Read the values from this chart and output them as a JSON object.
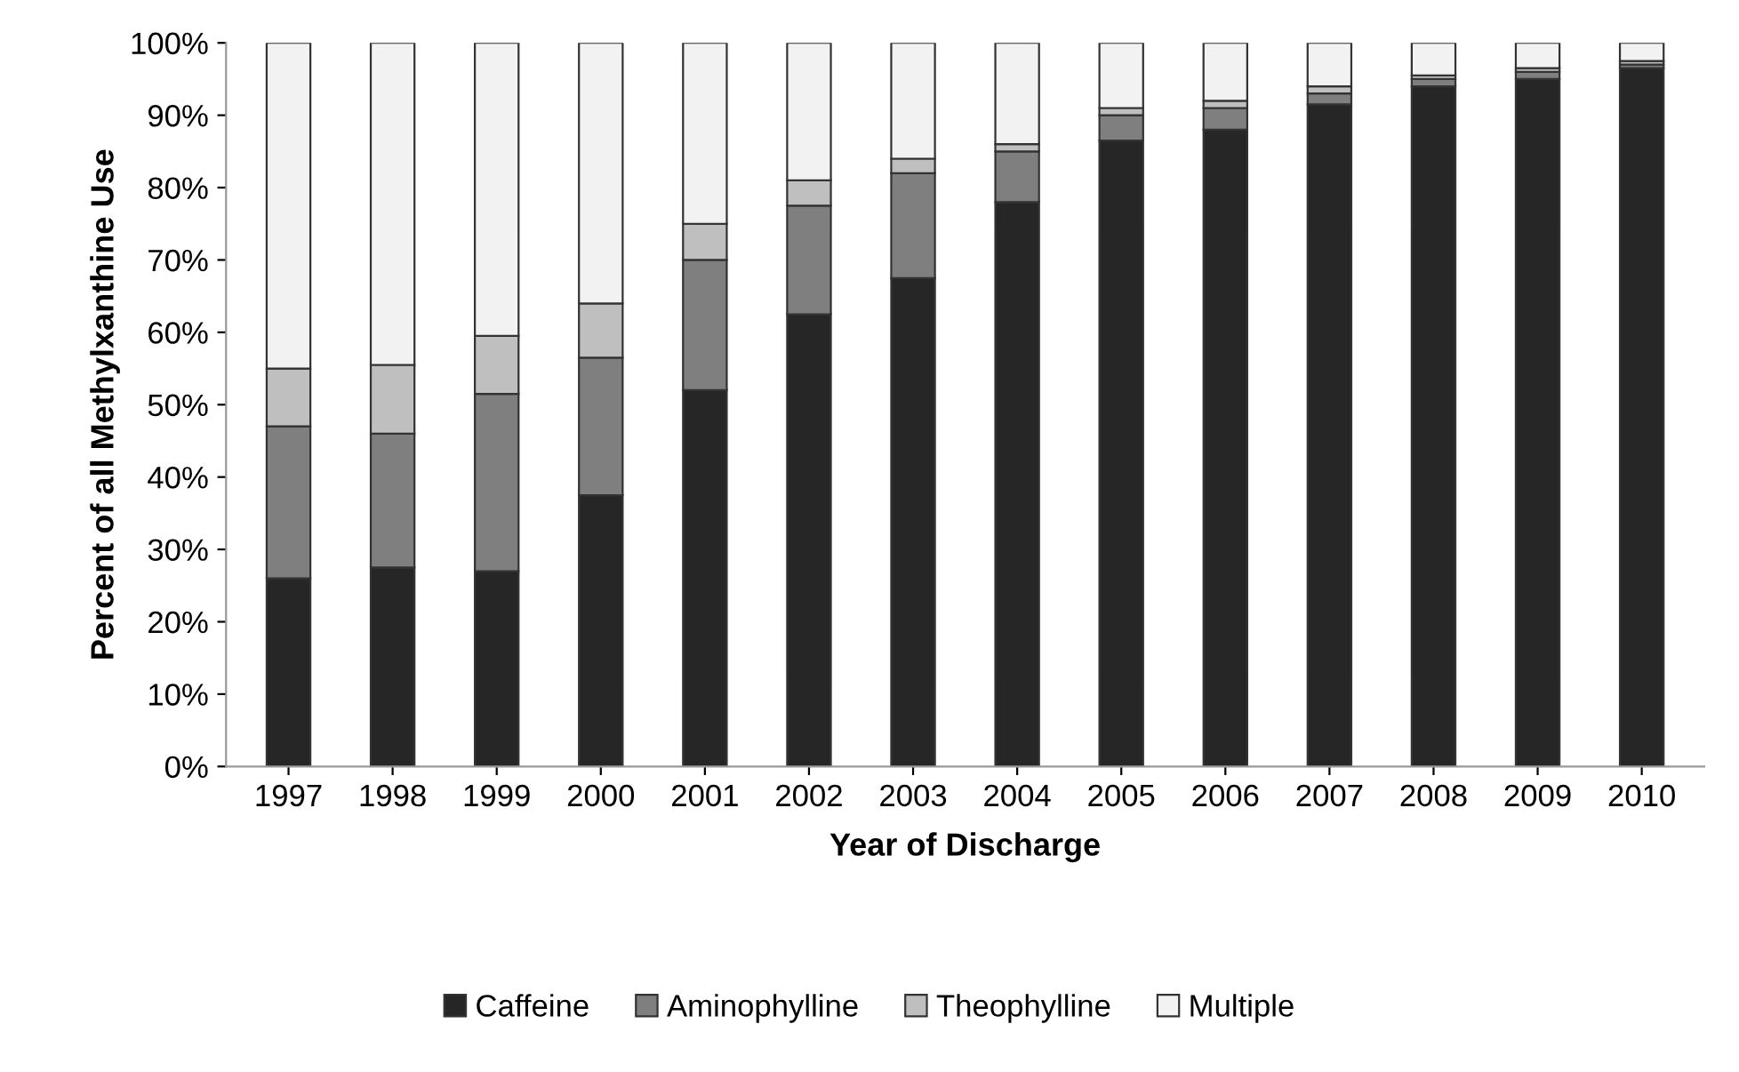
{
  "chart_data": {
    "type": "bar",
    "stacked": true,
    "xlabel": "Year of Discharge",
    "ylabel": "Percent of all Methylxanthine Use",
    "categories": [
      "1997",
      "1998",
      "1999",
      "2000",
      "2001",
      "2002",
      "2003",
      "2004",
      "2005",
      "2006",
      "2007",
      "2008",
      "2009",
      "2010"
    ],
    "series": [
      {
        "name": "Caffeine",
        "color": "#262626",
        "values": [
          26,
          27.5,
          27,
          37.5,
          52,
          62.5,
          67.5,
          78,
          86.5,
          88,
          91.5,
          94,
          95,
          96.5
        ]
      },
      {
        "name": "Aminophylline",
        "color": "#7f7f7f",
        "values": [
          21,
          18.5,
          24.5,
          19,
          18,
          15,
          14.5,
          7,
          3.5,
          3,
          1.5,
          1,
          1,
          0.5
        ]
      },
      {
        "name": "Theophylline",
        "color": "#bfbfbf",
        "values": [
          8,
          9.5,
          8,
          7.5,
          5,
          3.5,
          2,
          1,
          1,
          1,
          1,
          0.5,
          0.5,
          0.5
        ]
      },
      {
        "name": "Multiple",
        "color": "#f2f2f2",
        "values": [
          45,
          44.5,
          40.5,
          36,
          25,
          19,
          16,
          14,
          9,
          8,
          6,
          4.5,
          3.5,
          2.5
        ]
      }
    ],
    "ylim": [
      0,
      100
    ],
    "yticks": [
      {
        "value": 0,
        "label": "0%"
      },
      {
        "value": 10,
        "label": "10%"
      },
      {
        "value": 20,
        "label": "20%"
      },
      {
        "value": 30,
        "label": "30%"
      },
      {
        "value": 40,
        "label": "40%"
      },
      {
        "value": 50,
        "label": "50%"
      },
      {
        "value": 60,
        "label": "60%"
      },
      {
        "value": 70,
        "label": "70%"
      },
      {
        "value": 80,
        "label": "80%"
      },
      {
        "value": 90,
        "label": "90%"
      },
      {
        "value": 100,
        "label": "100%"
      }
    ],
    "grid": false,
    "legend": "bottom"
  }
}
